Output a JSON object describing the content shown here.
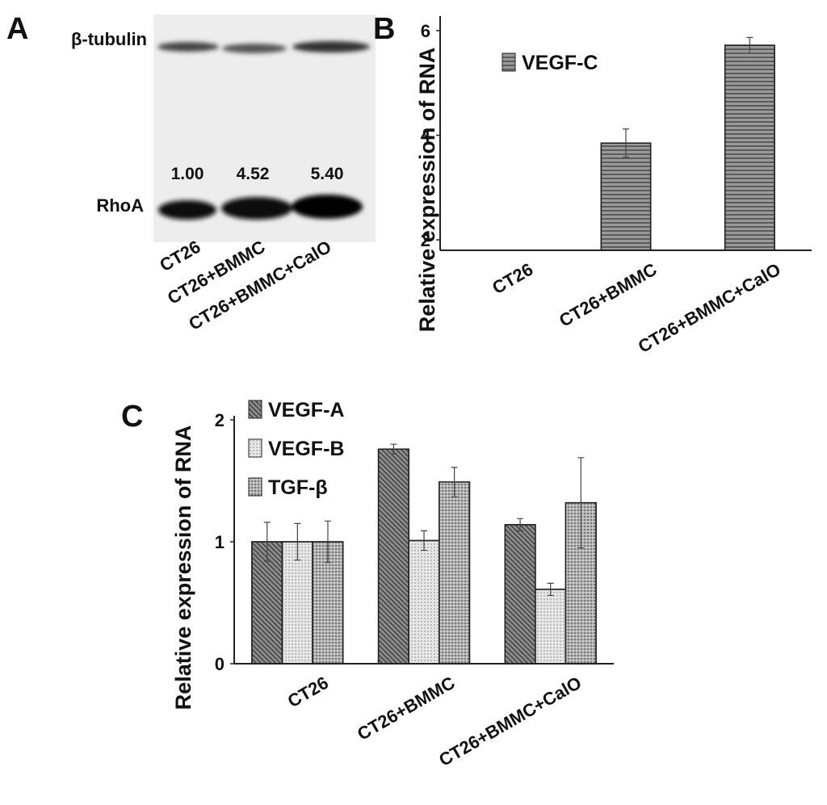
{
  "blot": {
    "panel": "A",
    "proteins": [
      "β-tubulin",
      "RhoA"
    ],
    "quantities": [
      "1.00",
      "4.52",
      "5.40"
    ],
    "lanes": [
      "CT26",
      "CT26+BMMC",
      "CT26+BMMC+CalO"
    ]
  },
  "chart_data": [
    {
      "panel": "B",
      "type": "bar",
      "y_label": "Relative expression of RNA",
      "categories": [
        "CT26",
        "CT26+BMMC",
        "CT26+BMMC+CalO"
      ],
      "series": [
        {
          "name": "VEGF-C",
          "color": "#9a9a9a",
          "pattern": "horizontal",
          "values": [
            null,
            3.85,
            5.72
          ],
          "errors": [
            null,
            0.27,
            0.15
          ]
        }
      ],
      "ylim": [
        1.8,
        6.2
      ],
      "yticks": [
        2,
        4,
        6
      ],
      "legend": "upper-left"
    },
    {
      "panel": "C",
      "type": "bar",
      "y_label": "Relative expression of RNA",
      "categories": [
        "CT26",
        "CT26+BMMC",
        "CT26+BMMC+CalO"
      ],
      "series": [
        {
          "name": "VEGF-A",
          "color": "#8c8c8c",
          "pattern": "diagonal",
          "values": [
            1,
            1.76,
            1.14
          ],
          "errors": [
            0.16,
            0.04,
            0.05
          ]
        },
        {
          "name": "VEGF-B",
          "color": "#e6e6e6",
          "pattern": "dots",
          "values": [
            1,
            1.01,
            0.61
          ],
          "errors": [
            0.15,
            0.08,
            0.05
          ]
        },
        {
          "name": "TGF-β",
          "color": "#7a7a7a",
          "pattern": "grid",
          "values": [
            1,
            1.49,
            1.32
          ],
          "errors": [
            0.17,
            0.12,
            0.37
          ]
        }
      ],
      "ylim": [
        0,
        2
      ],
      "yticks": [
        0,
        1,
        2
      ],
      "legend": "upper-left"
    }
  ]
}
